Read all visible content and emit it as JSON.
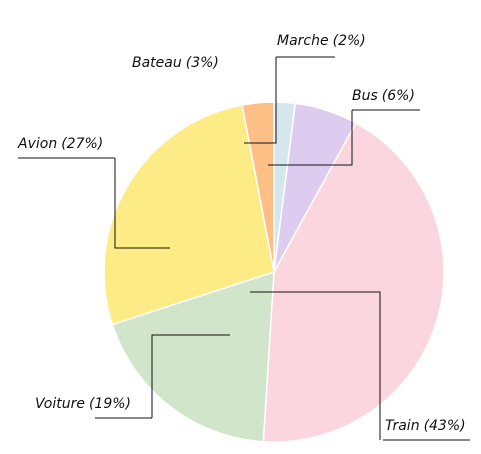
{
  "chart_data": {
    "type": "pie",
    "categories": [
      "Marche",
      "Bus",
      "Train",
      "Voiture",
      "Avion",
      "Bateau"
    ],
    "values": [
      2,
      6,
      43,
      19,
      27,
      3
    ],
    "value_labels": [
      "(2%)",
      "(6%)",
      "(43%)",
      "(19%)",
      "(27%)",
      "(3%)"
    ],
    "colors": [
      "#d3e7ec",
      "#ddcbf0",
      "#fbd6df",
      "#d0e5c9",
      "#fdec86",
      "#fdbf86"
    ]
  }
}
